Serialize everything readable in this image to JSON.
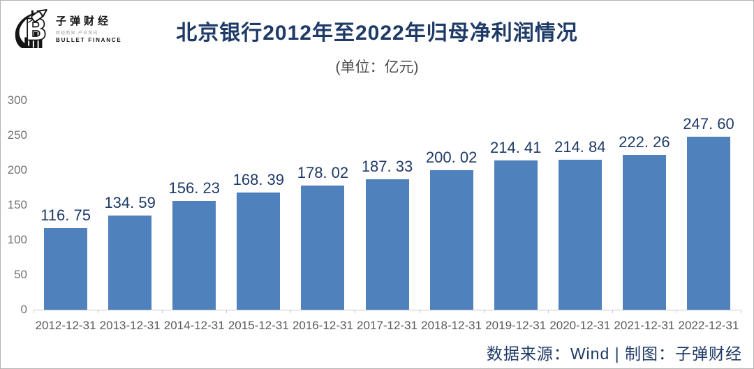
{
  "logo": {
    "name_cn": "子弹财经",
    "tagline": "财经新知·产业风向",
    "name_en": "BULLET FINANCE"
  },
  "chart_data": {
    "type": "bar",
    "title": "北京银行2012年至2022年归母净利润情况",
    "subtitle": "(单位：亿元)",
    "unit": "亿元",
    "categories": [
      "2012-12-31",
      "2013-12-31",
      "2014-12-31",
      "2015-12-31",
      "2016-12-31",
      "2017-12-31",
      "2018-12-31",
      "2019-12-31",
      "2020-12-31",
      "2021-12-31",
      "2022-12-31"
    ],
    "values": [
      116.75,
      134.59,
      156.23,
      168.39,
      178.02,
      187.33,
      200.02,
      214.41,
      214.84,
      222.26,
      247.6
    ],
    "value_labels": [
      "116. 75",
      "134. 59",
      "156. 23",
      "168. 39",
      "178. 02",
      "187. 33",
      "200. 02",
      "214. 41",
      "214. 84",
      "222. 26",
      "247. 60"
    ],
    "ylim": [
      0,
      300
    ],
    "yticks": [
      0,
      50,
      100,
      150,
      200,
      250,
      300
    ],
    "grid": false,
    "legend_position": "none",
    "bar_color": "#4f81bd",
    "value_label_color": "#1e3a66",
    "axis_label_color": "#595959"
  },
  "footer": {
    "text": "数据来源：Wind | 制图：子弹财经"
  }
}
